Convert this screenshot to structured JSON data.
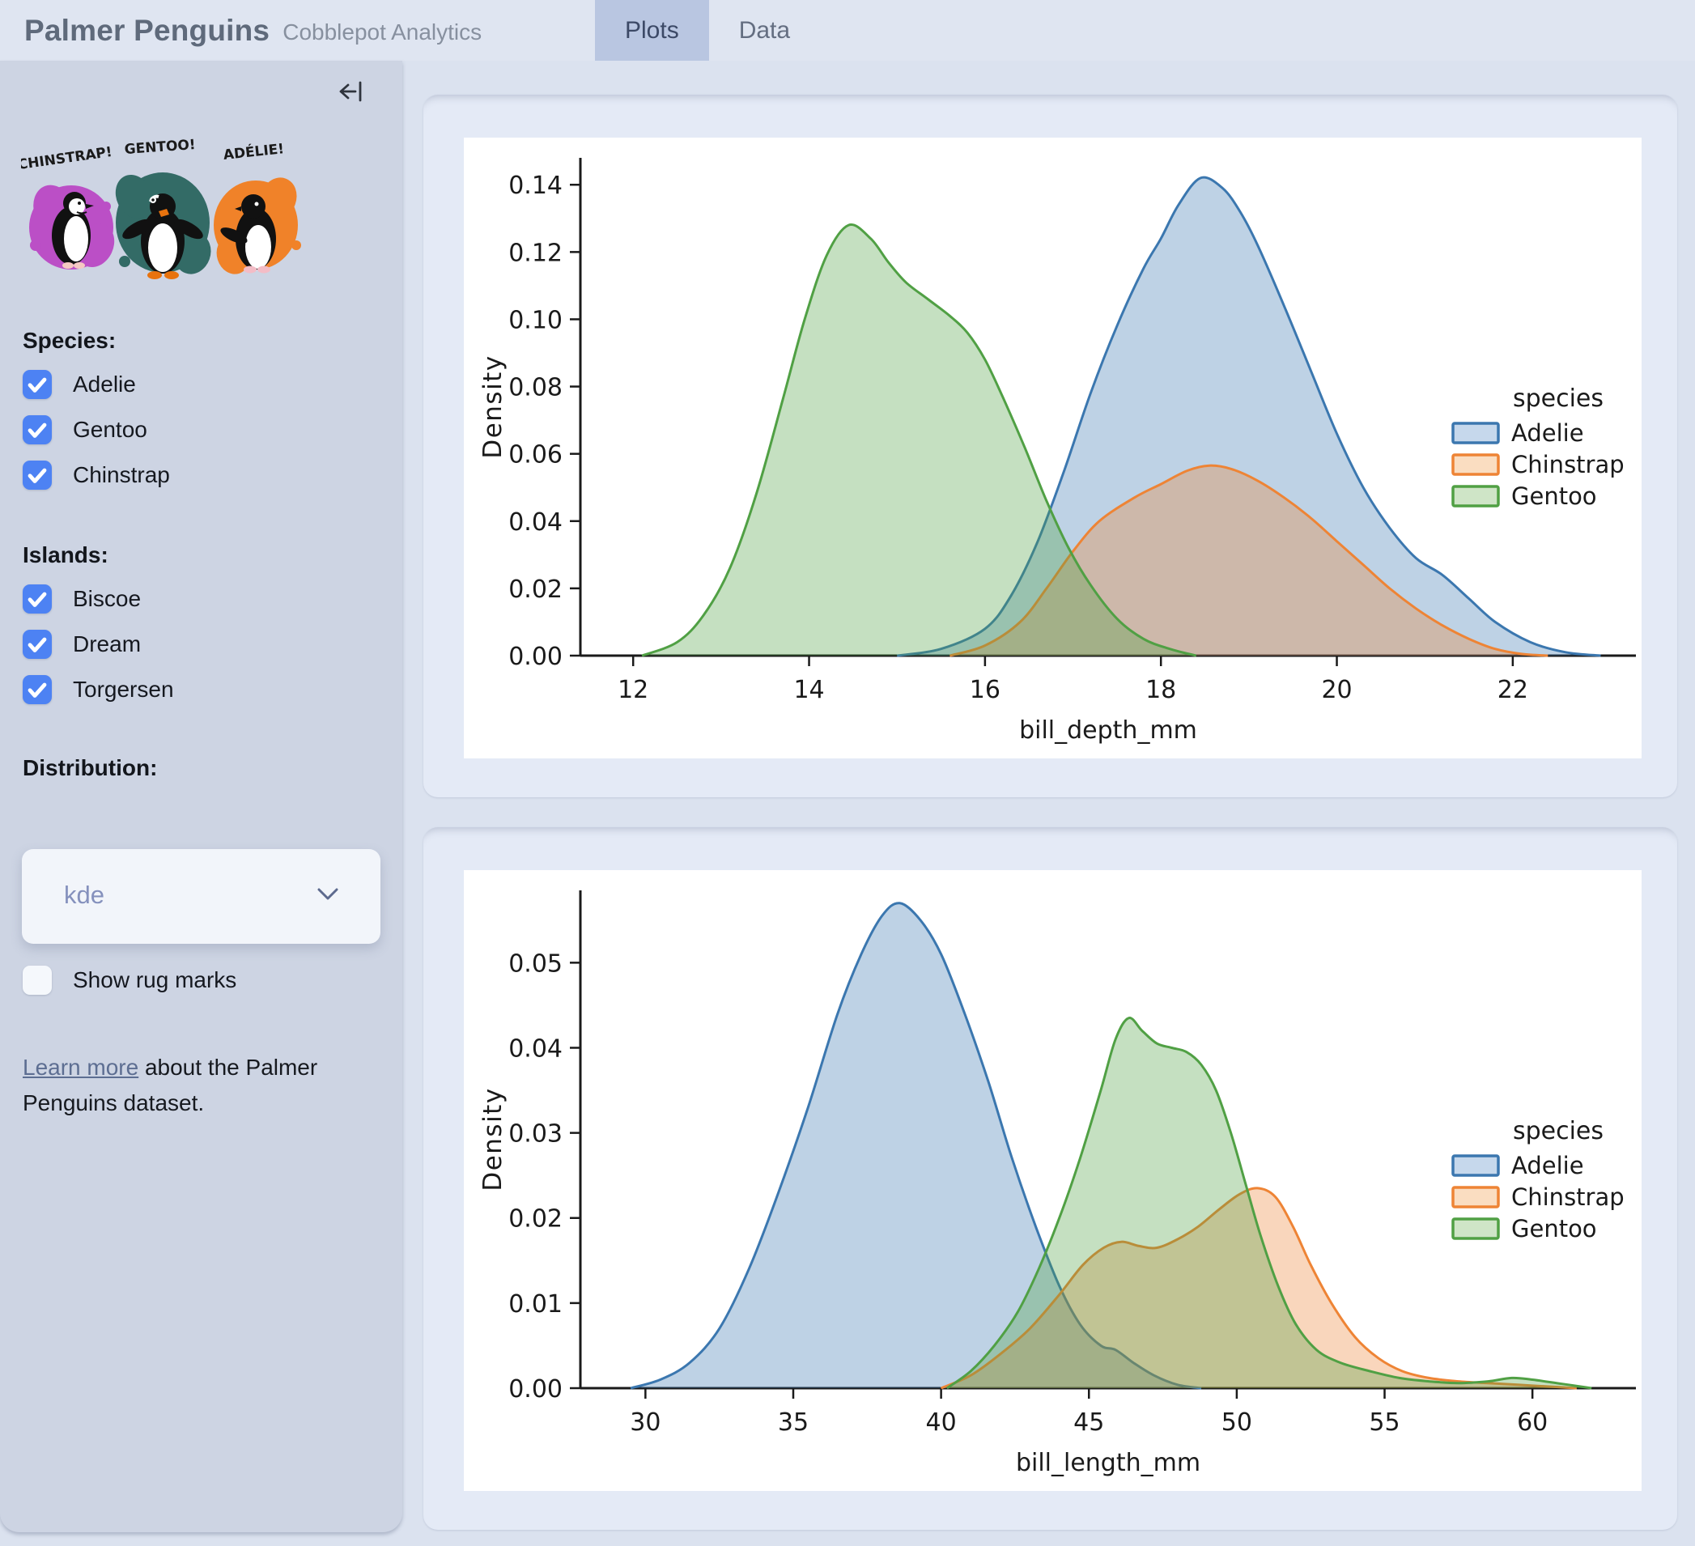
{
  "header": {
    "title": "Palmer Penguins",
    "subtitle": "Cobblepot Analytics",
    "tabs": [
      {
        "label": "Plots",
        "active": true
      },
      {
        "label": "Data",
        "active": false
      }
    ]
  },
  "sidebar": {
    "icons": {
      "collapse": "arrow-left-to-bar",
      "chevron": "chevron-down"
    },
    "artwork": {
      "labels": [
        "CHINSTRAP!",
        "GENTOO!",
        "ADÉLIE!"
      ],
      "splash_colors": [
        "#bb4fc6",
        "#336b66",
        "#f08229"
      ]
    },
    "species": {
      "label": "Species:",
      "options": [
        {
          "label": "Adelie",
          "checked": true
        },
        {
          "label": "Gentoo",
          "checked": true
        },
        {
          "label": "Chinstrap",
          "checked": true
        }
      ]
    },
    "islands": {
      "label": "Islands:",
      "options": [
        {
          "label": "Biscoe",
          "checked": true
        },
        {
          "label": "Dream",
          "checked": true
        },
        {
          "label": "Torgersen",
          "checked": true
        }
      ]
    },
    "distribution": {
      "label": "Distribution:",
      "value": "kde"
    },
    "rug": {
      "label": "Show rug marks",
      "checked": false
    },
    "footer": {
      "link_text": "Learn more",
      "text_after": " about the Palmer Penguins dataset."
    }
  },
  "theme": {
    "checkbox_blue": "#4d82f3",
    "active_tab": "#b9c6e1",
    "card_bg": "#e4eaf6",
    "sidebar_bg": "#cdd4e3"
  },
  "chart_data": [
    {
      "type": "area",
      "subtype": "kde-density",
      "xlabel": "bill_depth_mm",
      "ylabel": "Density",
      "xlim": [
        11.4,
        23.4
      ],
      "ylim": [
        0,
        0.148
      ],
      "grid": false,
      "xticks": [
        12,
        14,
        16,
        18,
        20,
        22
      ],
      "ytick_values": [
        0,
        0.02,
        0.04,
        0.06,
        0.08,
        0.1,
        0.12,
        0.14
      ],
      "ytick_labels": [
        "0.00",
        "0.02",
        "0.04",
        "0.06",
        "0.08",
        "0.10",
        "0.12",
        "0.14"
      ],
      "legend": {
        "title": "species",
        "position": "center-right",
        "entries": [
          {
            "label": "Adelie",
            "line": "#3b77af",
            "fill": "#c6d8ec"
          },
          {
            "label": "Chinstrap",
            "line": "#ee8435",
            "fill": "#faddc1"
          },
          {
            "label": "Gentoo",
            "line": "#50a044",
            "fill": "#cfe5c7"
          }
        ]
      },
      "series": [
        {
          "name": "Adelie",
          "line_color": "#3b77af",
          "fill_color": "rgba(59,119,175,0.33)",
          "points": [
            [
              15.0,
              0
            ],
            [
              15.5,
              0.002
            ],
            [
              16.0,
              0.008
            ],
            [
              16.3,
              0.018
            ],
            [
              16.6,
              0.034
            ],
            [
              16.9,
              0.055
            ],
            [
              17.2,
              0.078
            ],
            [
              17.5,
              0.098
            ],
            [
              17.8,
              0.115
            ],
            [
              18.0,
              0.124
            ],
            [
              18.2,
              0.134
            ],
            [
              18.45,
              0.142
            ],
            [
              18.7,
              0.139
            ],
            [
              18.9,
              0.132
            ],
            [
              19.1,
              0.122
            ],
            [
              19.4,
              0.104
            ],
            [
              19.7,
              0.085
            ],
            [
              20.0,
              0.066
            ],
            [
              20.3,
              0.05
            ],
            [
              20.6,
              0.038
            ],
            [
              20.9,
              0.029
            ],
            [
              21.2,
              0.024
            ],
            [
              21.5,
              0.017
            ],
            [
              21.8,
              0.01
            ],
            [
              22.2,
              0.004
            ],
            [
              22.6,
              0.001
            ],
            [
              23.0,
              0
            ]
          ]
        },
        {
          "name": "Chinstrap",
          "line_color": "#ee8435",
          "fill_color": "rgba(238,132,53,0.33)",
          "points": [
            [
              15.6,
              0
            ],
            [
              16.0,
              0.003
            ],
            [
              16.4,
              0.01
            ],
            [
              16.7,
              0.02
            ],
            [
              17.0,
              0.031
            ],
            [
              17.3,
              0.04
            ],
            [
              17.7,
              0.047
            ],
            [
              18.0,
              0.051
            ],
            [
              18.3,
              0.055
            ],
            [
              18.55,
              0.0565
            ],
            [
              18.8,
              0.0555
            ],
            [
              19.1,
              0.052
            ],
            [
              19.4,
              0.047
            ],
            [
              19.7,
              0.041
            ],
            [
              20.0,
              0.034
            ],
            [
              20.3,
              0.027
            ],
            [
              20.6,
              0.02
            ],
            [
              20.9,
              0.014
            ],
            [
              21.2,
              0.009
            ],
            [
              21.5,
              0.005
            ],
            [
              21.8,
              0.002
            ],
            [
              22.1,
              0.0005
            ],
            [
              22.4,
              0
            ]
          ]
        },
        {
          "name": "Gentoo",
          "line_color": "#50a044",
          "fill_color": "rgba(80,160,68,0.33)",
          "points": [
            [
              12.1,
              0
            ],
            [
              12.5,
              0.004
            ],
            [
              12.8,
              0.012
            ],
            [
              13.1,
              0.026
            ],
            [
              13.4,
              0.048
            ],
            [
              13.7,
              0.076
            ],
            [
              13.95,
              0.1
            ],
            [
              14.2,
              0.119
            ],
            [
              14.45,
              0.128
            ],
            [
              14.7,
              0.124
            ],
            [
              14.9,
              0.117
            ],
            [
              15.1,
              0.111
            ],
            [
              15.35,
              0.106
            ],
            [
              15.6,
              0.101
            ],
            [
              15.8,
              0.096
            ],
            [
              16.0,
              0.088
            ],
            [
              16.2,
              0.077
            ],
            [
              16.45,
              0.062
            ],
            [
              16.7,
              0.046
            ],
            [
              16.95,
              0.032
            ],
            [
              17.2,
              0.021
            ],
            [
              17.5,
              0.011
            ],
            [
              17.8,
              0.005
            ],
            [
              18.1,
              0.002
            ],
            [
              18.4,
              0
            ]
          ]
        }
      ]
    },
    {
      "type": "area",
      "subtype": "kde-density",
      "xlabel": "bill_length_mm",
      "ylabel": "Density",
      "xlim": [
        27.8,
        63.5
      ],
      "ylim": [
        0,
        0.0585
      ],
      "grid": false,
      "xticks": [
        30,
        35,
        40,
        45,
        50,
        55,
        60
      ],
      "ytick_values": [
        0,
        0.01,
        0.02,
        0.03,
        0.04,
        0.05
      ],
      "ytick_labels": [
        "0.00",
        "0.01",
        "0.02",
        "0.03",
        "0.04",
        "0.05"
      ],
      "legend": {
        "title": "species",
        "position": "center-right",
        "entries": [
          {
            "label": "Adelie",
            "line": "#3b77af",
            "fill": "#c6d8ec"
          },
          {
            "label": "Chinstrap",
            "line": "#ee8435",
            "fill": "#faddc1"
          },
          {
            "label": "Gentoo",
            "line": "#50a044",
            "fill": "#cfe5c7"
          }
        ]
      },
      "series": [
        {
          "name": "Adelie",
          "line_color": "#3b77af",
          "fill_color": "rgba(59,119,175,0.33)",
          "points": [
            [
              29.5,
              0
            ],
            [
              30.5,
              0.001
            ],
            [
              31.5,
              0.003
            ],
            [
              32.5,
              0.007
            ],
            [
              33.5,
              0.014
            ],
            [
              34.5,
              0.023
            ],
            [
              35.5,
              0.033
            ],
            [
              36.5,
              0.044
            ],
            [
              37.3,
              0.051
            ],
            [
              38.0,
              0.0555
            ],
            [
              38.6,
              0.057
            ],
            [
              39.3,
              0.055
            ],
            [
              40.0,
              0.051
            ],
            [
              40.8,
              0.044
            ],
            [
              41.6,
              0.036
            ],
            [
              42.4,
              0.027
            ],
            [
              43.2,
              0.019
            ],
            [
              44.0,
              0.012
            ],
            [
              44.7,
              0.0075
            ],
            [
              45.4,
              0.005
            ],
            [
              45.9,
              0.0045
            ],
            [
              46.5,
              0.003
            ],
            [
              47.2,
              0.0015
            ],
            [
              48.0,
              0.0004
            ],
            [
              48.8,
              0
            ]
          ]
        },
        {
          "name": "Chinstrap",
          "line_color": "#ee8435",
          "fill_color": "rgba(238,132,53,0.33)",
          "points": [
            [
              40.0,
              0
            ],
            [
              41.0,
              0.0015
            ],
            [
              42.0,
              0.004
            ],
            [
              43.0,
              0.007
            ],
            [
              44.0,
              0.011
            ],
            [
              44.8,
              0.0145
            ],
            [
              45.5,
              0.0165
            ],
            [
              46.1,
              0.0172
            ],
            [
              46.7,
              0.0167
            ],
            [
              47.3,
              0.0165
            ],
            [
              48.0,
              0.0175
            ],
            [
              48.7,
              0.019
            ],
            [
              49.4,
              0.021
            ],
            [
              50.1,
              0.0228
            ],
            [
              50.7,
              0.0235
            ],
            [
              51.3,
              0.0225
            ],
            [
              51.9,
              0.019
            ],
            [
              52.5,
              0.0145
            ],
            [
              53.2,
              0.01
            ],
            [
              54.0,
              0.006
            ],
            [
              54.8,
              0.0035
            ],
            [
              55.6,
              0.002
            ],
            [
              56.5,
              0.0012
            ],
            [
              57.5,
              0.0008
            ],
            [
              58.5,
              0.0006
            ],
            [
              59.5,
              0.0004
            ],
            [
              60.5,
              0.0002
            ],
            [
              61.5,
              0
            ]
          ]
        },
        {
          "name": "Gentoo",
          "line_color": "#50a044",
          "fill_color": "rgba(80,160,68,0.33)",
          "points": [
            [
              40.2,
              0
            ],
            [
              41.0,
              0.002
            ],
            [
              41.8,
              0.005
            ],
            [
              42.6,
              0.009
            ],
            [
              43.3,
              0.014
            ],
            [
              44.0,
              0.02
            ],
            [
              44.7,
              0.027
            ],
            [
              45.4,
              0.035
            ],
            [
              45.9,
              0.041
            ],
            [
              46.35,
              0.0435
            ],
            [
              46.8,
              0.042
            ],
            [
              47.3,
              0.0405
            ],
            [
              47.8,
              0.04
            ],
            [
              48.3,
              0.0395
            ],
            [
              48.8,
              0.038
            ],
            [
              49.3,
              0.035
            ],
            [
              49.8,
              0.03
            ],
            [
              50.3,
              0.024
            ],
            [
              50.8,
              0.018
            ],
            [
              51.4,
              0.012
            ],
            [
              52.0,
              0.0075
            ],
            [
              52.7,
              0.0045
            ],
            [
              53.5,
              0.003
            ],
            [
              54.5,
              0.002
            ],
            [
              55.5,
              0.0012
            ],
            [
              56.5,
              0.0008
            ],
            [
              57.5,
              0.0006
            ],
            [
              58.5,
              0.0008
            ],
            [
              59.3,
              0.0012
            ],
            [
              60.0,
              0.001
            ],
            [
              61.0,
              0.0005
            ],
            [
              62.0,
              0
            ]
          ]
        }
      ]
    }
  ]
}
